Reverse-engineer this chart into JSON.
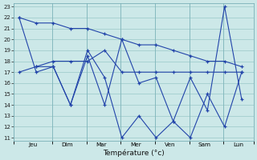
{
  "background_color": "#cce8e8",
  "grid_color": "#99c8c8",
  "line_color": "#2244aa",
  "xlabel": "Température (°c)",
  "ylim_min": 11,
  "ylim_max": 23,
  "days": [
    "Jeu",
    "Dim",
    "Mar",
    "Mer",
    "Ven",
    "Sam",
    "Lun"
  ],
  "s1x": [
    0,
    0.5,
    1.0,
    1.5,
    2.0,
    2.5,
    3.0,
    3.5,
    4.0,
    4.5,
    5.0,
    5.5,
    6.0,
    6.5
  ],
  "s1y": [
    17.0,
    17.5,
    18.0,
    18.0,
    18.0,
    19.0,
    17.0,
    17.0,
    17.0,
    17.0,
    17.0,
    17.0,
    17.0,
    17.0
  ],
  "s2x": [
    0,
    0.5,
    1.0,
    1.5,
    2.0,
    2.5,
    3.0,
    3.5,
    4.0,
    4.5,
    5.0,
    5.5,
    6.0,
    6.5
  ],
  "s2y": [
    22.0,
    21.5,
    21.5,
    21.0,
    21.0,
    20.5,
    20.0,
    19.5,
    19.5,
    19.0,
    18.5,
    18.0,
    18.0,
    17.5
  ],
  "s3x": [
    0,
    0.5,
    1.0,
    1.5,
    2.0,
    2.5,
    3.0,
    3.5,
    4.0,
    4.5,
    5.0,
    5.5,
    6.0,
    6.5
  ],
  "s3y": [
    22.0,
    17.0,
    17.5,
    14.0,
    18.5,
    14.0,
    20.0,
    16.0,
    16.5,
    12.5,
    16.5,
    13.5,
    23.0,
    14.5
  ],
  "s4x": [
    0.5,
    1.0,
    1.5,
    2.0,
    2.5,
    3.0,
    3.5,
    4.0,
    4.5,
    5.0,
    5.5,
    6.0,
    6.5
  ],
  "s4y": [
    17.5,
    17.5,
    14.0,
    19.0,
    16.5,
    11.0,
    13.0,
    11.0,
    12.5,
    11.0,
    15.0,
    12.0,
    17.0
  ],
  "day_sep_x": [
    0.97,
    1.97,
    2.97,
    3.97,
    4.97,
    5.97
  ],
  "xlim": [
    -0.15,
    6.85
  ]
}
